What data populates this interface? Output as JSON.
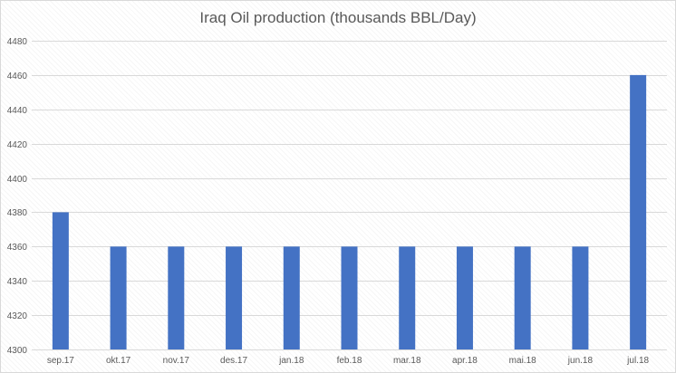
{
  "chart_data": {
    "type": "bar",
    "title": "Iraq Oil production (thousands BBL/Day)",
    "xlabel": "",
    "ylabel": "",
    "categories": [
      "sep.17",
      "okt.17",
      "nov.17",
      "des.17",
      "jan.18",
      "feb.18",
      "mar.18",
      "apr.18",
      "mai.18",
      "jun.18",
      "jul.18"
    ],
    "values": [
      4380,
      4360,
      4360,
      4360,
      4360,
      4360,
      4360,
      4360,
      4360,
      4360,
      4460
    ],
    "ylim": [
      4300,
      4480
    ],
    "yticks": [
      4300,
      4320,
      4340,
      4360,
      4380,
      4400,
      4420,
      4440,
      4460,
      4480
    ],
    "grid": true,
    "legend": "none",
    "colors": {
      "bar": "#4472c4",
      "grid": "#d9d9d9",
      "text": "#595959"
    }
  }
}
